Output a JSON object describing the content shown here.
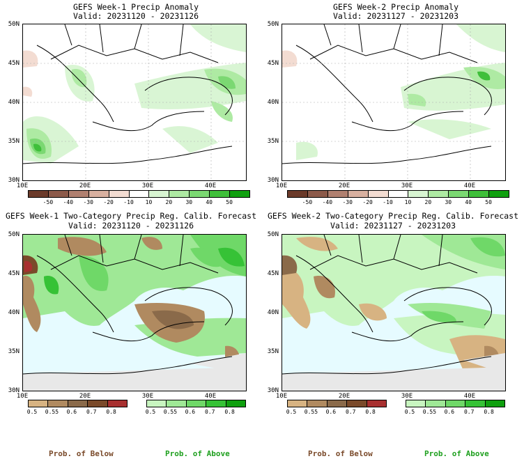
{
  "panels": [
    {
      "title": "GEFS Week-1 Precip Anomaly",
      "valid": "Valid: 20231120 - 20231126"
    },
    {
      "title": "GEFS Week-2 Precip Anomaly",
      "valid": "Valid: 20231127 - 20231203"
    },
    {
      "title": "GEFS Week-1 Two-Category Precip Reg. Calib. Forecast",
      "valid": "Valid: 20231120 - 20231126"
    },
    {
      "title": "GEFS Week-2 Two-Category Precip Reg. Calib. Forecast",
      "valid": "Valid: 20231127 - 20231203"
    }
  ],
  "lat_labels": [
    "50N",
    "45N",
    "40N",
    "35N",
    "30N"
  ],
  "lon_labels": [
    "10E",
    "20E",
    "30E",
    "40E"
  ],
  "anomaly_colorbar": {
    "labels": [
      "-50",
      "-40",
      "-30",
      "-20",
      "-10",
      "10",
      "20",
      "30",
      "40",
      "50"
    ],
    "colors": [
      "#6b3a2a",
      "#8c5a4a",
      "#b08070",
      "#d8b0a0",
      "#f3dcd2",
      "#ffffff",
      "#d8f5d2",
      "#aeeaa3",
      "#7bd872",
      "#3fbf3a",
      "#10a010"
    ]
  },
  "below_colorbar": {
    "labels": [
      "0.5",
      "0.55",
      "0.6",
      "0.7",
      "0.8"
    ],
    "colors": [
      "#d7b382",
      "#b08a60",
      "#8a6a4a",
      "#7a4a2a",
      "#a83030"
    ]
  },
  "above_colorbar": {
    "labels": [
      "0.5",
      "0.55",
      "0.6",
      "0.7",
      "0.8"
    ],
    "colors": [
      "#c8f5c0",
      "#9fe896",
      "#6fd868",
      "#36c236",
      "#0fa00f"
    ]
  },
  "footer": {
    "below": "Prob. of Below",
    "above": "Prob. of Above"
  },
  "colors": {
    "below_text": "#7a4a2a",
    "above_text": "#1fa01f",
    "sea_cyan": "#e6fbff",
    "no_data_gray": "#e8e8e8"
  }
}
